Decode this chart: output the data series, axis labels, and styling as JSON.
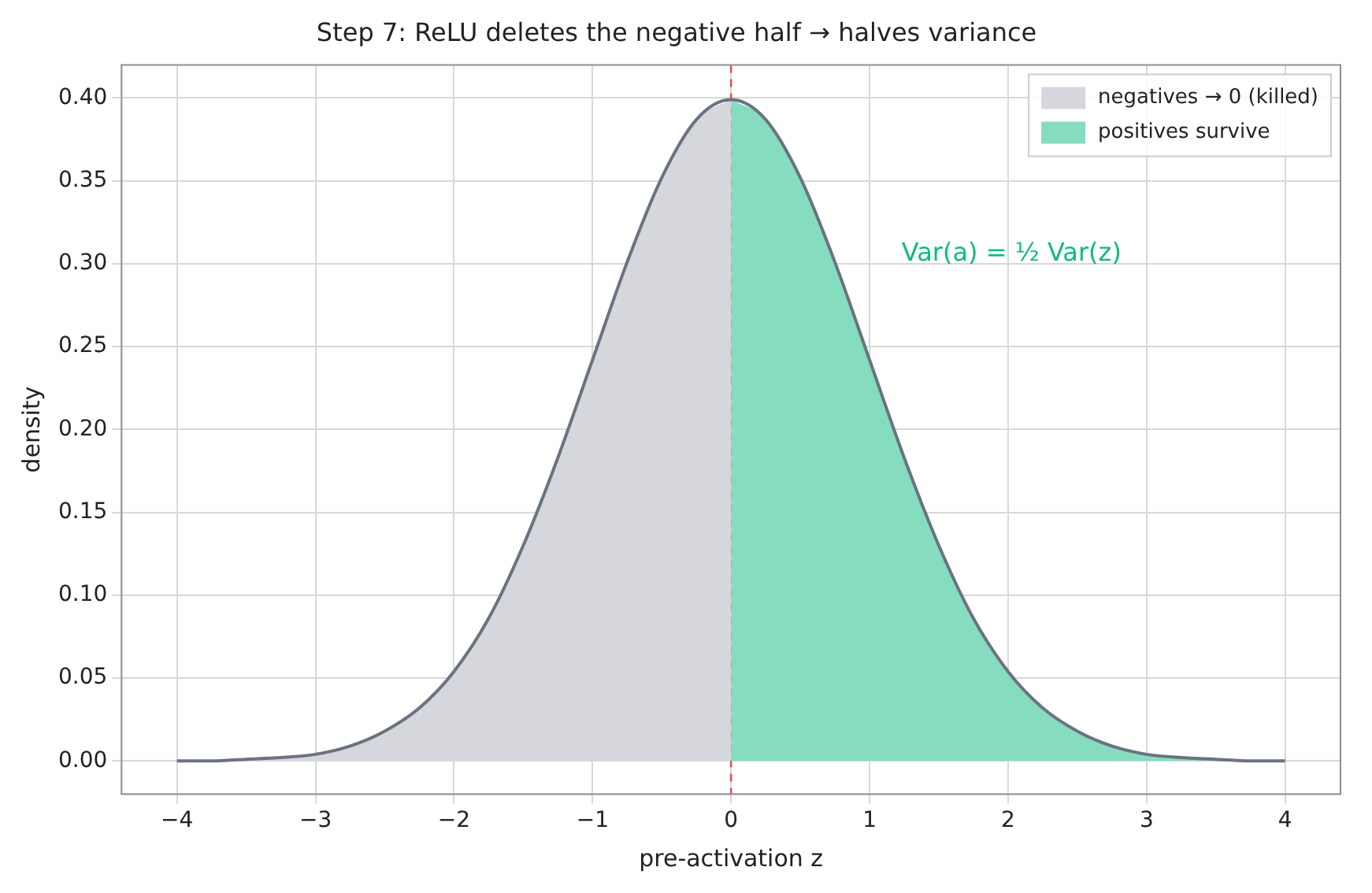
{
  "chart_data": {
    "type": "area",
    "title": "Step 7: ReLU deletes the negative half → halves variance",
    "xlabel": "pre-activation z",
    "ylabel": "density",
    "series": [
      {
        "name": "negatives → 0 (killed)",
        "type": "area",
        "color": "#d5d7dc",
        "x": [
          -4,
          -3.75,
          -3.5,
          -3.25,
          -3,
          -2.75,
          -2.5,
          -2.25,
          -2,
          -1.75,
          -1.5,
          -1.25,
          -1,
          -0.75,
          -0.5,
          -0.25,
          0
        ],
        "values": [
          0.0,
          0.0,
          0.001,
          0.002,
          0.004,
          0.009,
          0.018,
          0.032,
          0.054,
          0.086,
          0.13,
          0.183,
          0.242,
          0.301,
          0.352,
          0.387,
          0.399
        ]
      },
      {
        "name": "positives survive",
        "type": "area",
        "color": "#86dcbf",
        "x": [
          0,
          0.25,
          0.5,
          0.75,
          1,
          1.25,
          1.5,
          1.75,
          2,
          2.25,
          2.5,
          2.75,
          3,
          3.25,
          3.5,
          3.75,
          4
        ],
        "values": [
          0.399,
          0.387,
          0.352,
          0.301,
          0.242,
          0.183,
          0.13,
          0.086,
          0.054,
          0.032,
          0.018,
          0.009,
          0.004,
          0.002,
          0.001,
          0.0,
          0.0
        ]
      },
      {
        "type": "line",
        "color": "#6b7280",
        "x": [
          -4,
          -3.75,
          -3.5,
          -3.25,
          -3,
          -2.75,
          -2.5,
          -2.25,
          -2,
          -1.75,
          -1.5,
          -1.25,
          -1,
          -0.75,
          -0.5,
          -0.25,
          0,
          0.25,
          0.5,
          0.75,
          1,
          1.25,
          1.5,
          1.75,
          2,
          2.25,
          2.5,
          2.75,
          3,
          3.25,
          3.5,
          3.75,
          4
        ],
        "values": [
          0.0,
          0.0,
          0.001,
          0.002,
          0.004,
          0.009,
          0.018,
          0.032,
          0.054,
          0.086,
          0.13,
          0.183,
          0.242,
          0.301,
          0.352,
          0.387,
          0.399,
          0.387,
          0.352,
          0.301,
          0.242,
          0.183,
          0.13,
          0.086,
          0.054,
          0.032,
          0.018,
          0.009,
          0.004,
          0.002,
          0.001,
          0.0,
          0.0
        ]
      }
    ],
    "xlim": [
      -4.4,
      4.4
    ],
    "xticks": [
      -4,
      -3,
      -2,
      -1,
      0,
      1,
      2,
      3,
      4
    ],
    "ylim": [
      -0.02,
      0.42
    ],
    "yticks": [
      {
        "value": 0,
        "label": "0.00"
      },
      {
        "value": 0.05,
        "label": "0.05"
      },
      {
        "value": 0.1,
        "label": "0.10"
      },
      {
        "value": 0.15,
        "label": "0.15"
      },
      {
        "value": 0.2,
        "label": "0.20"
      },
      {
        "value": 0.25,
        "label": "0.25"
      },
      {
        "value": 0.3,
        "label": "0.30"
      },
      {
        "value": 0.35,
        "label": "0.35"
      },
      {
        "value": 0.4,
        "label": "0.40"
      }
    ],
    "ref_lines": [
      {
        "axis": "x",
        "value": 0,
        "color": "#e05252",
        "line_style": "dashed"
      }
    ],
    "annotations": [
      "Var(a) = ½ Var(z)"
    ],
    "grid": true,
    "legend": "top right",
    "marker": "none",
    "line_style": "solid"
  }
}
